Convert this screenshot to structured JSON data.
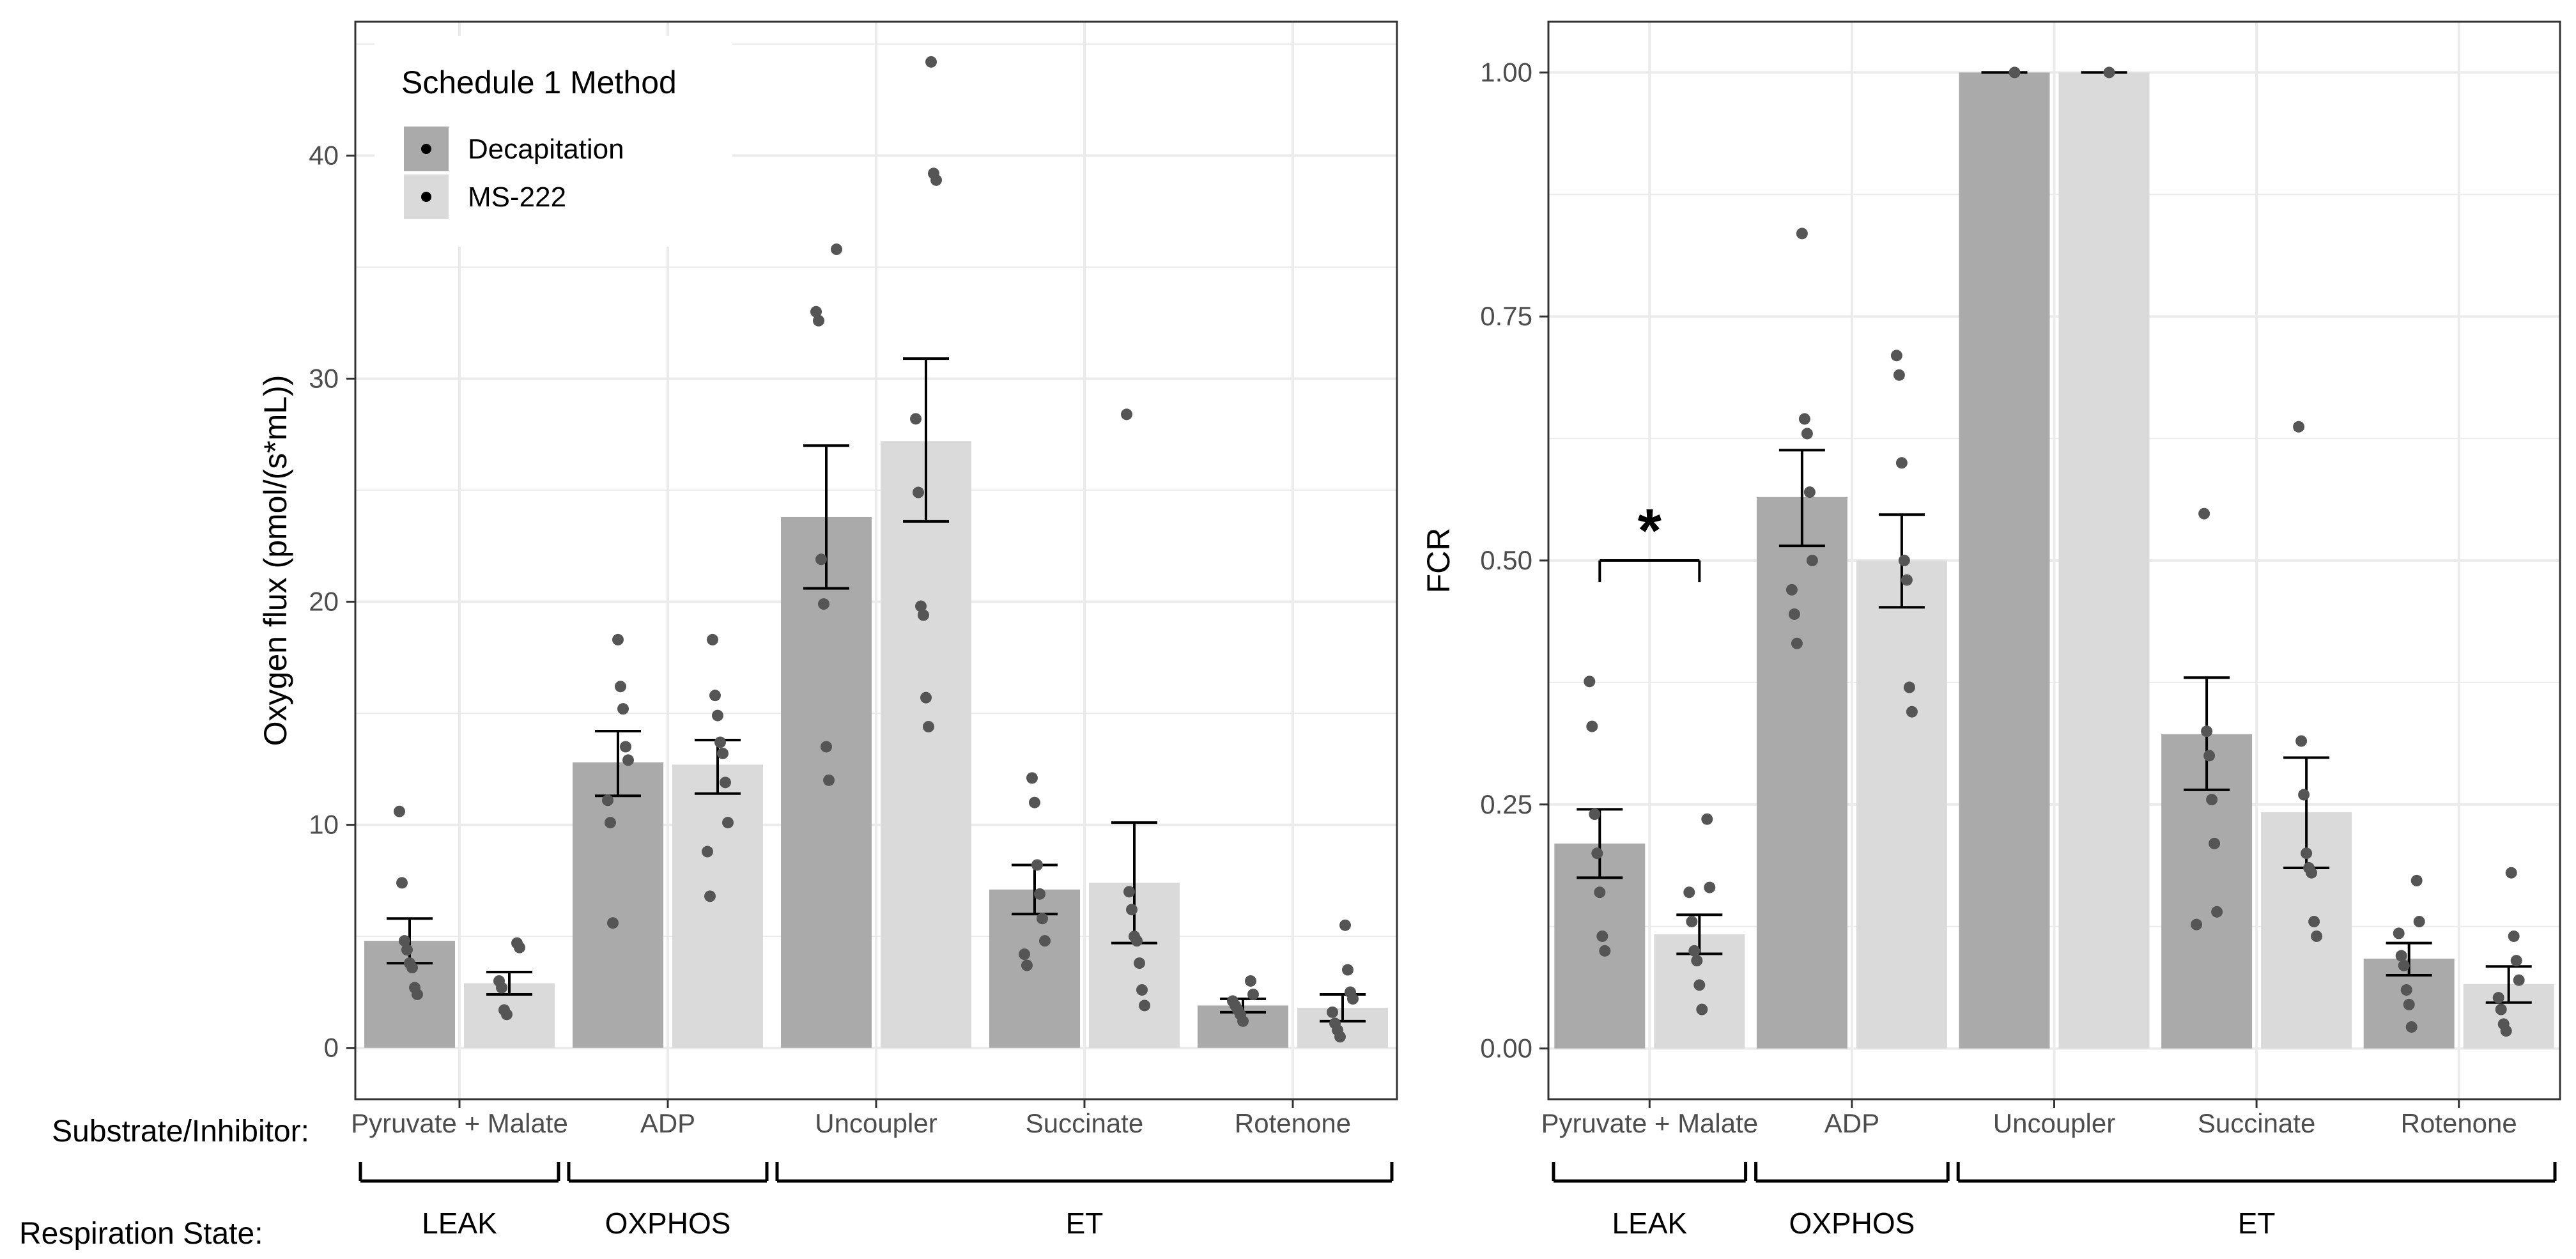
{
  "colors": {
    "decap_bar": "#aaaaaa",
    "ms222_bar": "#dadada",
    "points": "#555555",
    "grid": "#ebebeb",
    "axis_text": "#4d4d4d",
    "text": "#000000"
  },
  "legend": {
    "title": "Schedule 1 Method",
    "items": [
      "Decapitation",
      "MS-222"
    ]
  },
  "footer": {
    "substrate_label": "Substrate/Inhibitor:",
    "state_label": "Respiration State:"
  },
  "chart_data": [
    {
      "type": "bar",
      "panel": "left",
      "ylabel": "Oxygen flux (pmol/(s*mL))",
      "xlabel": "",
      "ylim": [
        -2.3,
        46
      ],
      "yticks": [
        0,
        10,
        20,
        30,
        40
      ],
      "categories": [
        "Pyruvate + Malate",
        "ADP",
        "Uncoupler",
        "Succinate",
        "Rotenone"
      ],
      "states": [
        {
          "label": "LEAK",
          "from": 0,
          "to": 0
        },
        {
          "label": "OXPHOS",
          "from": 1,
          "to": 1
        },
        {
          "label": "ET",
          "from": 2,
          "to": 4
        }
      ],
      "series": [
        {
          "name": "Decapitation",
          "values": [
            4.8,
            12.8,
            23.8,
            7.1,
            1.9
          ],
          "se_low": [
            3.8,
            11.3,
            20.6,
            6.0,
            1.6
          ],
          "se_high": [
            5.8,
            14.2,
            27.0,
            8.2,
            2.2
          ],
          "points": [
            [
              10.6,
              7.4,
              4.8,
              4.4,
              3.8,
              3.6,
              2.7,
              2.4
            ],
            [
              18.3,
              16.2,
              15.2,
              13.5,
              12.9,
              11.1,
              10.1,
              5.6
            ],
            [
              35.8,
              33.0,
              32.6,
              21.9,
              19.9,
              13.5,
              12.0
            ],
            [
              12.1,
              11.0,
              8.2,
              6.9,
              5.8,
              4.8,
              4.2,
              3.7
            ],
            [
              3.0,
              2.4,
              2.1,
              1.9,
              1.7,
              1.5,
              1.2
            ]
          ]
        },
        {
          "name": "MS-222",
          "values": [
            2.9,
            12.7,
            27.2,
            7.4,
            1.8
          ],
          "se_low": [
            2.4,
            11.4,
            23.6,
            4.7,
            1.2
          ],
          "se_high": [
            3.4,
            13.8,
            30.9,
            10.1,
            2.4
          ],
          "points": [
            [
              4.7,
              4.5,
              3.0,
              2.7,
              1.7,
              1.5
            ],
            [
              18.3,
              15.8,
              14.9,
              13.7,
              13.2,
              11.9,
              10.1,
              8.8,
              6.8
            ],
            [
              44.2,
              39.2,
              38.9,
              28.2,
              24.9,
              19.8,
              19.4,
              15.7,
              14.4
            ],
            [
              28.4,
              7.0,
              6.2,
              5.0,
              4.8,
              3.8,
              2.6,
              1.9
            ],
            [
              5.5,
              3.5,
              2.5,
              2.2,
              1.6,
              1.1,
              0.8,
              0.5
            ]
          ]
        }
      ]
    },
    {
      "type": "bar",
      "panel": "right",
      "ylabel": "FCR",
      "xlabel": "",
      "ylim": [
        -0.052,
        1.052
      ],
      "yticks": [
        0.0,
        0.25,
        0.5,
        0.75,
        1.0
      ],
      "ytick_labels": [
        "0.00",
        "0.25",
        "0.50",
        "0.75",
        "1.00"
      ],
      "categories": [
        "Pyruvate + Malate",
        "ADP",
        "Uncoupler",
        "Succinate",
        "Rotenone"
      ],
      "states": [
        {
          "label": "LEAK",
          "from": 0,
          "to": 0
        },
        {
          "label": "OXPHOS",
          "from": 1,
          "to": 1
        },
        {
          "label": "ET",
          "from": 2,
          "to": 4
        }
      ],
      "annotation": {
        "text": "*",
        "category": 0,
        "bracket_y": 0.5
      },
      "series": [
        {
          "name": "Decapitation",
          "values": [
            0.21,
            0.565,
            1.0,
            0.322,
            0.092
          ],
          "se_low": [
            0.175,
            0.515,
            1.0,
            0.265,
            0.075
          ],
          "se_high": [
            0.245,
            0.613,
            1.0,
            0.38,
            0.108
          ],
          "points": [
            [
              0.376,
              0.33,
              0.24,
              0.2,
              0.16,
              0.115,
              0.1
            ],
            [
              0.835,
              0.645,
              0.63,
              0.57,
              0.5,
              0.47,
              0.445,
              0.415
            ],
            [
              1.0
            ],
            [
              0.548,
              0.325,
              0.3,
              0.255,
              0.21,
              0.14,
              0.127
            ],
            [
              0.172,
              0.13,
              0.118,
              0.095,
              0.085,
              0.06,
              0.045,
              0.022
            ]
          ]
        },
        {
          "name": "MS-222",
          "values": [
            0.117,
            0.5,
            1.0,
            0.242,
            0.066
          ],
          "se_low": [
            0.097,
            0.452,
            1.0,
            0.185,
            0.047
          ],
          "se_high": [
            0.137,
            0.547,
            1.0,
            0.298,
            0.084
          ],
          "points": [
            [
              0.235,
              0.165,
              0.16,
              0.13,
              0.1,
              0.09,
              0.065,
              0.04
            ],
            [
              0.71,
              0.69,
              0.6,
              0.5,
              0.48,
              0.37,
              0.345
            ],
            [
              1.0
            ],
            [
              0.637,
              0.315,
              0.26,
              0.2,
              0.185,
              0.18,
              0.13,
              0.115
            ],
            [
              0.18,
              0.115,
              0.09,
              0.07,
              0.052,
              0.04,
              0.025,
              0.018
            ]
          ]
        }
      ]
    }
  ]
}
